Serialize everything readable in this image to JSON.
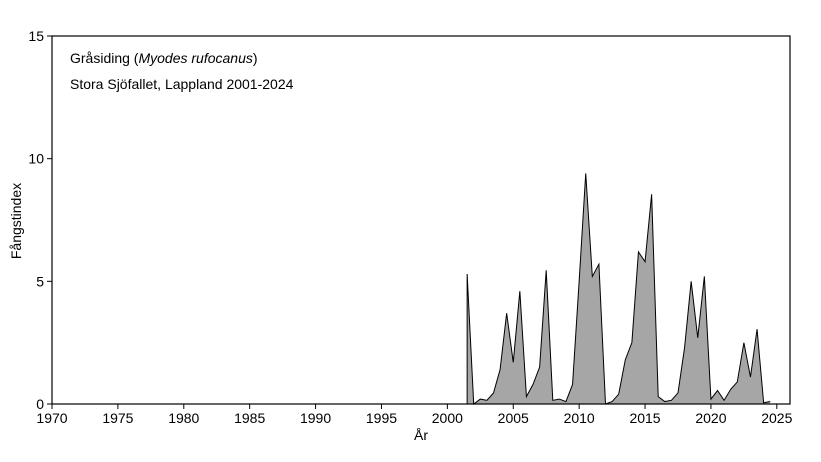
{
  "chart_data": {
    "type": "area",
    "title_species": "Gråsiding",
    "title_latin": "Myodes rufocanus",
    "subtitle": "Stora Sjöfallet, Lappland 2001-2024",
    "xlabel": "År",
    "ylabel": "Fångstindex",
    "xlim": [
      1970,
      2026
    ],
    "ylim": [
      0,
      15
    ],
    "x_ticks": [
      1970,
      1975,
      1980,
      1985,
      1990,
      1995,
      2000,
      2005,
      2010,
      2015,
      2020,
      2025
    ],
    "y_ticks": [
      0,
      5,
      10,
      15
    ],
    "grid": false,
    "colors": {
      "fill": "#a6a6a6",
      "line": "#000000"
    },
    "series": [
      {
        "x": [
          2001.5,
          2002.0,
          2002.5,
          2003.0,
          2003.5,
          2004.0,
          2004.5,
          2005.0,
          2005.5,
          2006.0,
          2006.5,
          2007.0,
          2007.5,
          2008.0,
          2008.5,
          2009.0,
          2009.5,
          2010.0,
          2010.5,
          2011.0,
          2011.5,
          2012.0,
          2012.5,
          2013.0,
          2013.5,
          2014.0,
          2014.5,
          2015.0,
          2015.5,
          2016.0,
          2016.5,
          2017.0,
          2017.5,
          2018.0,
          2018.5,
          2019.0,
          2019.5,
          2020.0,
          2020.5,
          2021.0,
          2021.5,
          2022.0,
          2022.5,
          2023.0,
          2023.5,
          2024.0,
          2024.5
        ],
        "y": [
          5.3,
          0.0,
          0.2,
          0.15,
          0.45,
          1.4,
          3.7,
          1.7,
          4.6,
          0.3,
          0.8,
          1.5,
          5.45,
          0.15,
          0.2,
          0.1,
          0.8,
          5.0,
          9.4,
          5.2,
          5.7,
          0.0,
          0.1,
          0.4,
          1.8,
          2.5,
          6.2,
          5.8,
          8.55,
          0.3,
          0.1,
          0.15,
          0.45,
          2.3,
          5.0,
          2.7,
          5.2,
          0.2,
          0.55,
          0.15,
          0.6,
          0.9,
          2.5,
          1.1,
          3.05,
          0.05,
          0.1
        ]
      }
    ]
  }
}
